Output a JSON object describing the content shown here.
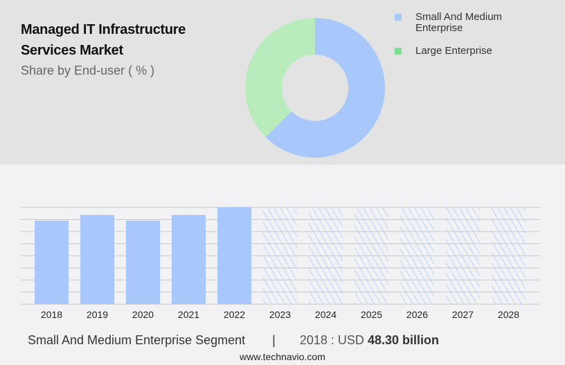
{
  "title_line1": "Managed IT Infrastructure",
  "title_line2": "Services Market",
  "subtitle": "Share by End-user ( % )",
  "colors": {
    "sme": "#a8c8fc",
    "large": "#b8ecbc",
    "large_legend": "#7ee08e",
    "hatch": "#a8c8fc"
  },
  "chart_data": [
    {
      "type": "pie",
      "donut": true,
      "categories": [
        "Small And Medium Enterprise",
        "Large Enterprise"
      ],
      "values": [
        62.5,
        37.5
      ],
      "legend": "top-right"
    },
    {
      "type": "bar",
      "categories": [
        "2018",
        "2019",
        "2020",
        "2021",
        "2022",
        "2023",
        "2024",
        "2025",
        "2026",
        "2027",
        "2028"
      ],
      "values": [
        48.3,
        51.5,
        48.3,
        51.5,
        55.9,
        null,
        null,
        null,
        null,
        null,
        null
      ],
      "forecast_hatched": [
        "2023",
        "2024",
        "2025",
        "2026",
        "2027",
        "2028"
      ],
      "grid": true,
      "xlabel": "",
      "ylabel": ""
    }
  ],
  "footer": {
    "segment": "Small And Medium Enterprise Segment",
    "separator": "|",
    "year_label": "2018 : USD",
    "value": "48.30 billion"
  },
  "site": "www.technavio.com"
}
